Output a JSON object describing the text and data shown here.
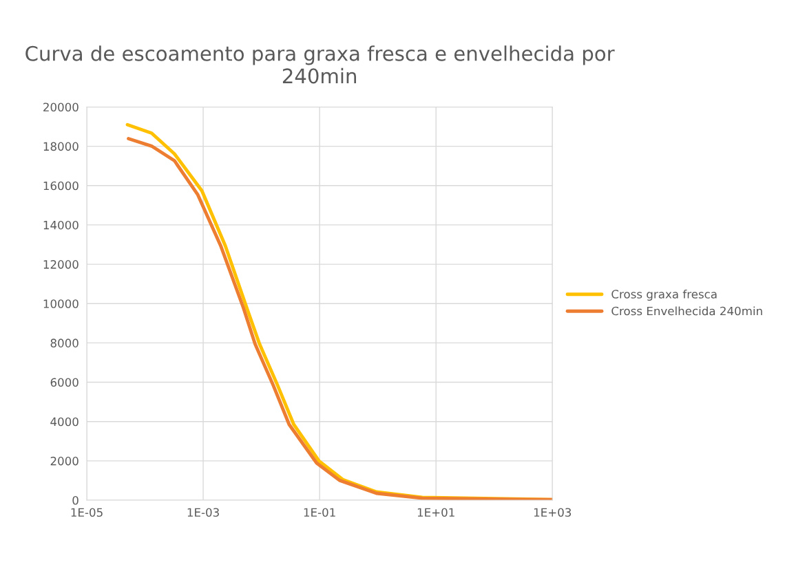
{
  "chart_data": {
    "type": "line",
    "title": "Curva de escoamento para graxa fresca e envelhecida por 240min",
    "log": "x",
    "grid": true,
    "legend": "right",
    "marker": "none",
    "line_style": "solid",
    "xlim": [
      1e-05,
      1000
    ],
    "xticks": [
      {
        "value": 1e-05,
        "label": "1E-05"
      },
      {
        "value": 0.001,
        "label": "1E-03"
      },
      {
        "value": 0.1,
        "label": "1E-01"
      },
      {
        "value": 10,
        "label": "1E+01"
      },
      {
        "value": 1000,
        "label": "1E+03"
      }
    ],
    "ylim": [
      0,
      20000
    ],
    "yticks": [
      0,
      2000,
      4000,
      6000,
      8000,
      10000,
      12000,
      14000,
      16000,
      18000,
      20000
    ],
    "series": [
      {
        "name": "Cross graxa fresca",
        "color": "#ffc000",
        "x": [
          5e-05,
          0.00013,
          0.00032,
          0.00095,
          0.0024,
          0.0056,
          0.0093,
          0.019,
          0.036,
          0.098,
          0.25,
          0.95,
          5.8,
          1000
        ],
        "values": [
          19100,
          18670,
          17620,
          15740,
          12940,
          9790,
          7940,
          5840,
          3850,
          1990,
          1050,
          420,
          140,
          30
        ]
      },
      {
        "name": "Cross Envelhecida 240min",
        "color": "#ed7d31",
        "x": [
          5.2e-05,
          0.00013,
          0.00032,
          0.00081,
          0.002,
          0.0049,
          0.0078,
          0.016,
          0.03,
          0.089,
          0.22,
          0.95,
          5.8,
          1000
        ],
        "values": [
          18390,
          18010,
          17270,
          15530,
          12940,
          9790,
          7940,
          5840,
          3850,
          1890,
          1010,
          350,
          100,
          25
        ]
      }
    ]
  }
}
